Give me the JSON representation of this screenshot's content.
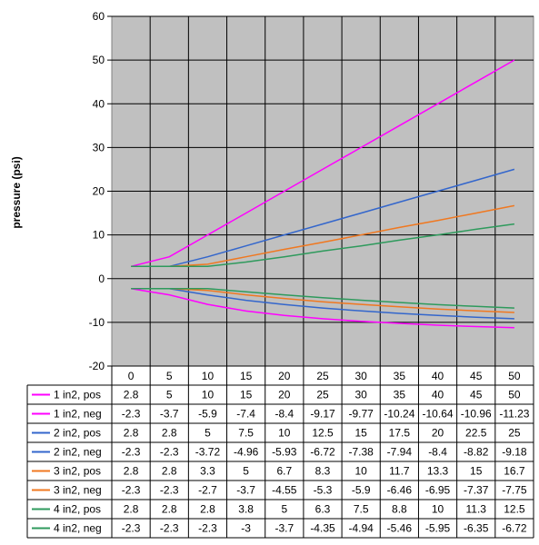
{
  "chart_data": {
    "type": "line",
    "title": "",
    "xlabel": "",
    "ylabel": "pressure (psi)",
    "ylim": [
      -20,
      60
    ],
    "yticks": [
      "60",
      "50",
      "40",
      "30",
      "20",
      "10",
      "0",
      "-10",
      "-20"
    ],
    "grid": true,
    "plot_background": "#c0c0c0",
    "legend_placement": "data-table-left",
    "categories": [
      "0",
      "5",
      "10",
      "15",
      "20",
      "25",
      "30",
      "35",
      "40",
      "45",
      "50"
    ],
    "series": [
      {
        "name": "1 in2, pos",
        "color": "#ff00ff",
        "values": [
          2.8,
          5,
          10,
          15,
          20,
          25,
          30,
          35,
          40,
          45,
          50
        ],
        "labels": [
          "2.8",
          "5",
          "10",
          "15",
          "20",
          "25",
          "30",
          "35",
          "40",
          "45",
          "50"
        ]
      },
      {
        "name": "1 in2, neg",
        "color": "#ff00ff",
        "values": [
          -2.3,
          -3.7,
          -5.9,
          -7.4,
          -8.4,
          -9.17,
          -9.77,
          -10.24,
          -10.64,
          -10.96,
          -11.23
        ],
        "labels": [
          "-2.3",
          "-3.7",
          "-5.9",
          "-7.4",
          "-8.4",
          "-9.17",
          "-9.77",
          "-10.24",
          "-10.64",
          "-10.96",
          "-11.23"
        ]
      },
      {
        "name": "2 in2, pos",
        "color": "#3366cc",
        "values": [
          2.8,
          2.8,
          5,
          7.5,
          10,
          12.5,
          15,
          17.5,
          20,
          22.5,
          25
        ],
        "labels": [
          "2.8",
          "2.8",
          "5",
          "7.5",
          "10",
          "12.5",
          "15",
          "17.5",
          "20",
          "22.5",
          "25"
        ]
      },
      {
        "name": "2 in2, neg",
        "color": "#3366cc",
        "values": [
          -2.3,
          -2.3,
          -3.72,
          -4.96,
          -5.93,
          -6.72,
          -7.38,
          -7.94,
          -8.4,
          -8.82,
          -9.18
        ],
        "labels": [
          "-2.3",
          "-2.3",
          "-3.72",
          "-4.96",
          "-5.93",
          "-6.72",
          "-7.38",
          "-7.94",
          "-8.4",
          "-8.82",
          "-9.18"
        ]
      },
      {
        "name": "3 in2, pos",
        "color": "#f07820",
        "values": [
          2.8,
          2.8,
          3.3,
          5,
          6.7,
          8.3,
          10,
          11.7,
          13.3,
          15,
          16.7
        ],
        "labels": [
          "2.8",
          "2.8",
          "3.3",
          "5",
          "6.7",
          "8.3",
          "10",
          "11.7",
          "13.3",
          "15",
          "16.7"
        ]
      },
      {
        "name": "3 in2, neg",
        "color": "#f07820",
        "values": [
          -2.3,
          -2.3,
          -2.7,
          -3.7,
          -4.55,
          -5.3,
          -5.9,
          -6.46,
          -6.95,
          -7.37,
          -7.75
        ],
        "labels": [
          "-2.3",
          "-2.3",
          "-2.7",
          "-3.7",
          "-4.55",
          "-5.3",
          "-5.9",
          "-6.46",
          "-6.95",
          "-7.37",
          "-7.75"
        ]
      },
      {
        "name": "4 in2, pos",
        "color": "#2e9a5c",
        "values": [
          2.8,
          2.8,
          2.8,
          3.8,
          5,
          6.3,
          7.5,
          8.8,
          10,
          11.3,
          12.5
        ],
        "labels": [
          "2.8",
          "2.8",
          "2.8",
          "3.8",
          "5",
          "6.3",
          "7.5",
          "8.8",
          "10",
          "11.3",
          "12.5"
        ]
      },
      {
        "name": "4 in2, neg",
        "color": "#2e9a5c",
        "values": [
          -2.3,
          -2.3,
          -2.3,
          -3,
          -3.7,
          -4.35,
          -4.94,
          -5.46,
          -5.95,
          -6.35,
          -6.72
        ],
        "labels": [
          "-2.3",
          "-2.3",
          "-2.3",
          "-3",
          "-3.7",
          "-4.35",
          "-4.94",
          "-5.46",
          "-5.95",
          "-6.35",
          "-6.72"
        ]
      }
    ]
  }
}
